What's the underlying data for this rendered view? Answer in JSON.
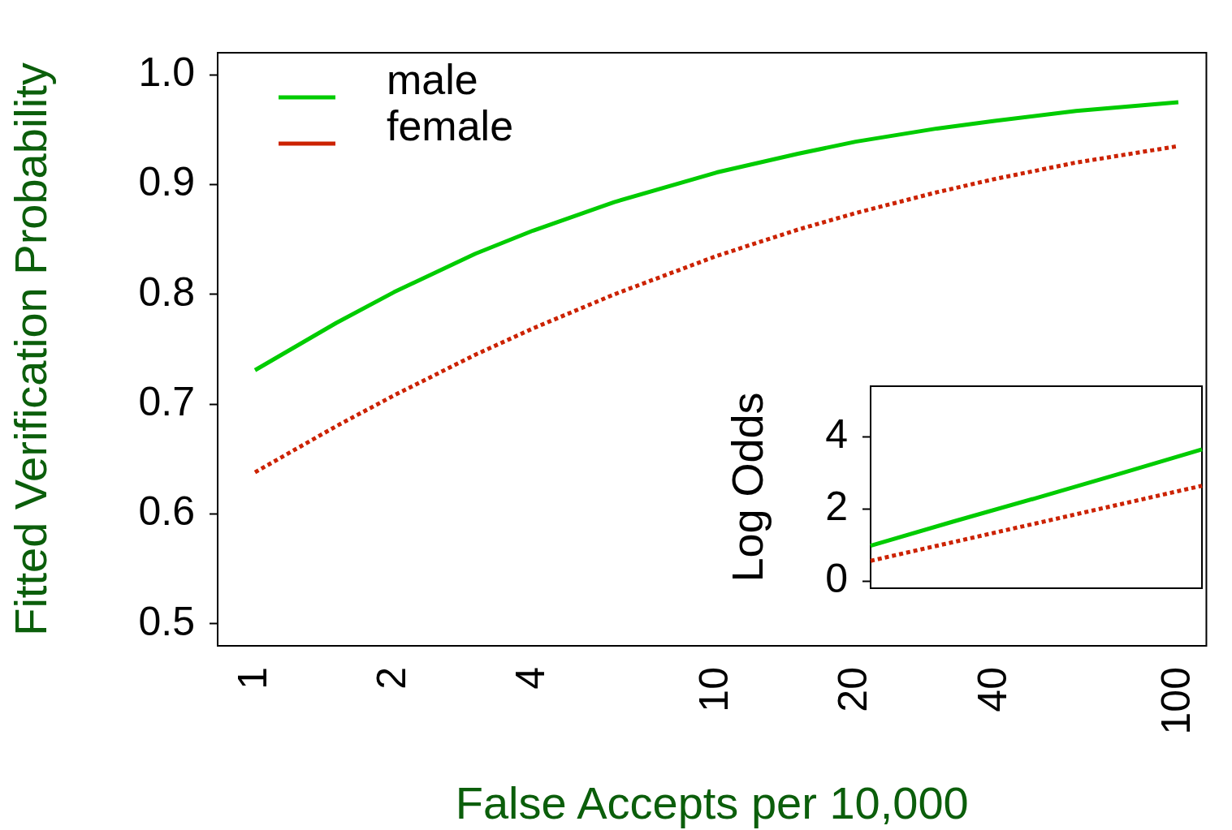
{
  "chart_data": [
    {
      "type": "line",
      "xlabel": "False Accepts per 10,000",
      "ylabel": "Fitted Verification Probability",
      "x": [
        1,
        1.5,
        2,
        3,
        4,
        6,
        10,
        15,
        20,
        30,
        40,
        60,
        100
      ],
      "series": [
        {
          "name": "male",
          "color": "#00cc00",
          "line_style": "solid",
          "values": [
            0.731,
            0.774,
            0.802,
            0.837,
            0.858,
            0.884,
            0.911,
            0.928,
            0.939,
            0.951,
            0.958,
            0.967,
            0.975
          ]
        },
        {
          "name": "female",
          "color": "#cc2200",
          "line_style": "dotted",
          "values": [
            0.638,
            0.68,
            0.708,
            0.745,
            0.769,
            0.8,
            0.835,
            0.859,
            0.874,
            0.893,
            0.905,
            0.92,
            0.935
          ]
        }
      ],
      "log": "x",
      "xlim": [
        0.83,
        115
      ],
      "ylim": [
        0.48,
        1.02
      ],
      "xticks": [
        1,
        2,
        4,
        10,
        20,
        40,
        100
      ],
      "yticks": [
        0.5,
        0.6,
        0.7,
        0.8,
        0.9,
        {
          "value": 1,
          "label": "1.0"
        }
      ],
      "grid": false,
      "legend": "top left",
      "marker": "none"
    },
    {
      "type": "line",
      "ylabel": "Log Odds",
      "categories": [
        null,
        null,
        null,
        null,
        null
      ],
      "series": [
        {
          "color": "#00cc00",
          "line_style": "solid",
          "values": [
            0.98,
            1.65,
            2.3,
            2.97,
            3.65
          ]
        },
        {
          "color": "#cc2200",
          "line_style": "dotted",
          "values": [
            0.56,
            1.08,
            1.6,
            2.12,
            2.64
          ]
        }
      ],
      "ylim": [
        -0.2,
        5.4
      ],
      "yticks": [
        0,
        2,
        4
      ],
      "tick_labels": "y",
      "grid": false,
      "marker": "none"
    }
  ]
}
